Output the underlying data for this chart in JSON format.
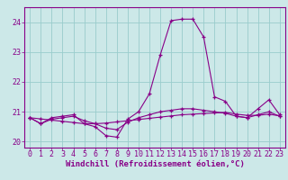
{
  "xlabel": "Windchill (Refroidissement éolien,°C)",
  "background_color": "#cce8e8",
  "line_color": "#880088",
  "grid_color": "#99cccc",
  "hours": [
    0,
    1,
    2,
    3,
    4,
    5,
    6,
    7,
    8,
    9,
    10,
    11,
    12,
    13,
    14,
    15,
    16,
    17,
    18,
    19,
    20,
    21,
    22,
    23
  ],
  "temp": [
    20.8,
    20.6,
    20.8,
    20.85,
    20.9,
    20.6,
    20.5,
    20.2,
    20.15,
    20.75,
    21.0,
    21.6,
    22.9,
    24.05,
    24.1,
    24.1,
    23.5,
    21.5,
    21.35,
    20.85,
    20.8,
    21.1,
    21.4,
    20.9
  ],
  "windchill": [
    20.8,
    20.6,
    20.75,
    20.8,
    20.85,
    20.7,
    20.6,
    20.45,
    20.4,
    20.65,
    20.8,
    20.9,
    21.0,
    21.05,
    21.1,
    21.1,
    21.05,
    21.0,
    20.95,
    20.85,
    20.8,
    20.9,
    21.0,
    20.85
  ],
  "straight": [
    20.8,
    20.76,
    20.72,
    20.68,
    20.64,
    20.6,
    20.6,
    20.62,
    20.66,
    20.7,
    20.74,
    20.78,
    20.82,
    20.86,
    20.9,
    20.92,
    20.94,
    20.96,
    20.98,
    20.92,
    20.88,
    20.88,
    20.92,
    20.86
  ],
  "ylim": [
    19.8,
    24.5
  ],
  "yticks": [
    20,
    21,
    22,
    23,
    24
  ],
  "xticks": [
    0,
    1,
    2,
    3,
    4,
    5,
    6,
    7,
    8,
    9,
    10,
    11,
    12,
    13,
    14,
    15,
    16,
    17,
    18,
    19,
    20,
    21,
    22,
    23
  ],
  "xlabel_fontsize": 6.5,
  "tick_fontsize": 6.0
}
